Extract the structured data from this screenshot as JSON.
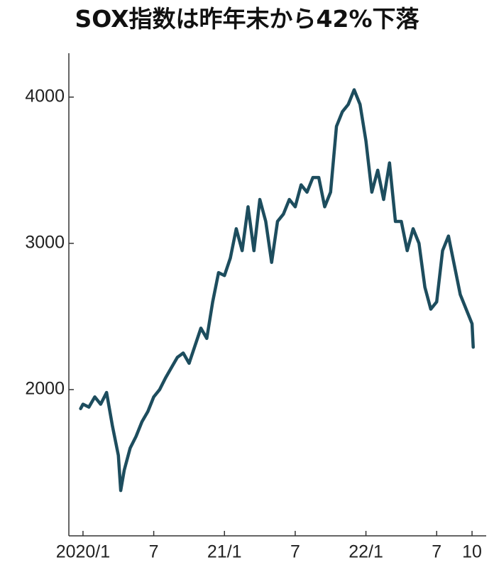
{
  "chart_data": {
    "type": "line",
    "title": "SOX指数は昨年末から42%下落",
    "x": [
      -0.2,
      0,
      0.5,
      1,
      1.5,
      2,
      2.5,
      3,
      3.2,
      3.5,
      4,
      4.5,
      5,
      5.5,
      6,
      6.5,
      7,
      7.5,
      8,
      8.5,
      9,
      9.5,
      10,
      10.5,
      11,
      11.5,
      12,
      12.5,
      13,
      13.5,
      14,
      14.5,
      15,
      15.5,
      16,
      16.5,
      17,
      17.5,
      18,
      18.5,
      19,
      19.5,
      20,
      20.5,
      21,
      21.5,
      22,
      22.5,
      23,
      23.5,
      24,
      24.5,
      25,
      25.5,
      26,
      26.5,
      27,
      27.5,
      28,
      28.5,
      29,
      29.5,
      30,
      30.5,
      31,
      31.5,
      32,
      32.5,
      33,
      33.1
    ],
    "series": [
      {
        "color": "#1d4d5e",
        "values": [
          1870,
          1900,
          1880,
          1950,
          1900,
          1980,
          1750,
          1550,
          1310,
          1450,
          1600,
          1680,
          1780,
          1850,
          1950,
          2000,
          2080,
          2150,
          2220,
          2250,
          2180,
          2300,
          2420,
          2350,
          2600,
          2800,
          2780,
          2900,
          3100,
          2950,
          3250,
          2950,
          3300,
          3150,
          2870,
          3150,
          3200,
          3300,
          3250,
          3400,
          3350,
          3450,
          3450,
          3250,
          3350,
          3800,
          3900,
          3950,
          4050,
          3950,
          3700,
          3350,
          3500,
          3300,
          3550,
          3150,
          3150,
          2950,
          3100,
          3000,
          2700,
          2550,
          2600,
          2950,
          3050,
          2850,
          2650,
          2550,
          2450,
          2290
        ]
      }
    ],
    "xlim": [
      -1.2,
      34.2
    ],
    "xticks": [
      {
        "value": 0,
        "label": "2020/1"
      },
      {
        "value": 6,
        "label": "7"
      },
      {
        "value": 12,
        "label": "21/1"
      },
      {
        "value": 18,
        "label": "7"
      },
      {
        "value": 24,
        "label": "22/1"
      },
      {
        "value": 30,
        "label": "7"
      },
      {
        "value": 33,
        "label": "10"
      }
    ],
    "ylim": [
      1000,
      4300
    ],
    "yticks": [
      2000,
      3000,
      4000
    ]
  }
}
